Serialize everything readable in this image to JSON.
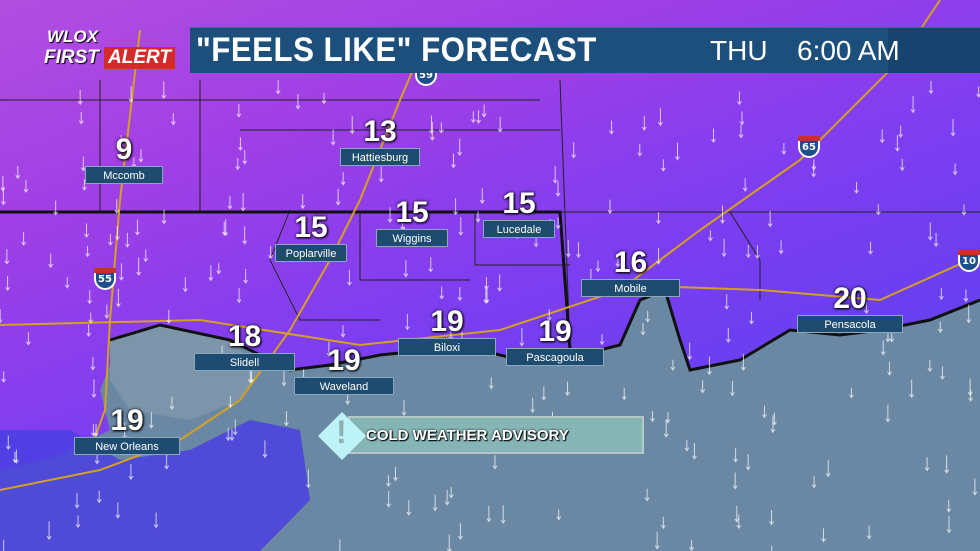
{
  "logo": {
    "station": "WLOX",
    "brand_first": "FIRST",
    "brand_alert": "ALERT"
  },
  "header": {
    "title": "\"FEELS LIKE\" FORECAST",
    "day": "THU",
    "time": "6:00 AM"
  },
  "advisory": {
    "label": "COLD WEATHER ADVISORY",
    "icon": "exclamation-diamond-icon",
    "color": "#86b5b6"
  },
  "colors": {
    "cold_land": "#a040e6",
    "water": "#6a8aa6",
    "label_bg": "#1d4c70"
  },
  "interstates": [
    "59",
    "65",
    "55",
    "10"
  ],
  "cities": [
    {
      "name": "Mccomb",
      "temp": "9"
    },
    {
      "name": "Hattiesburg",
      "temp": "13"
    },
    {
      "name": "Poplarville",
      "temp": "15"
    },
    {
      "name": "Wiggins",
      "temp": "15"
    },
    {
      "name": "Lucedale",
      "temp": "15"
    },
    {
      "name": "Mobile",
      "temp": "16"
    },
    {
      "name": "Pensacola",
      "temp": "20"
    },
    {
      "name": "Slidell",
      "temp": "18"
    },
    {
      "name": "Waveland",
      "temp": "19"
    },
    {
      "name": "Biloxi",
      "temp": "19"
    },
    {
      "name": "Pascagoula",
      "temp": "19"
    },
    {
      "name": "New Orleans",
      "temp": "19"
    }
  ]
}
